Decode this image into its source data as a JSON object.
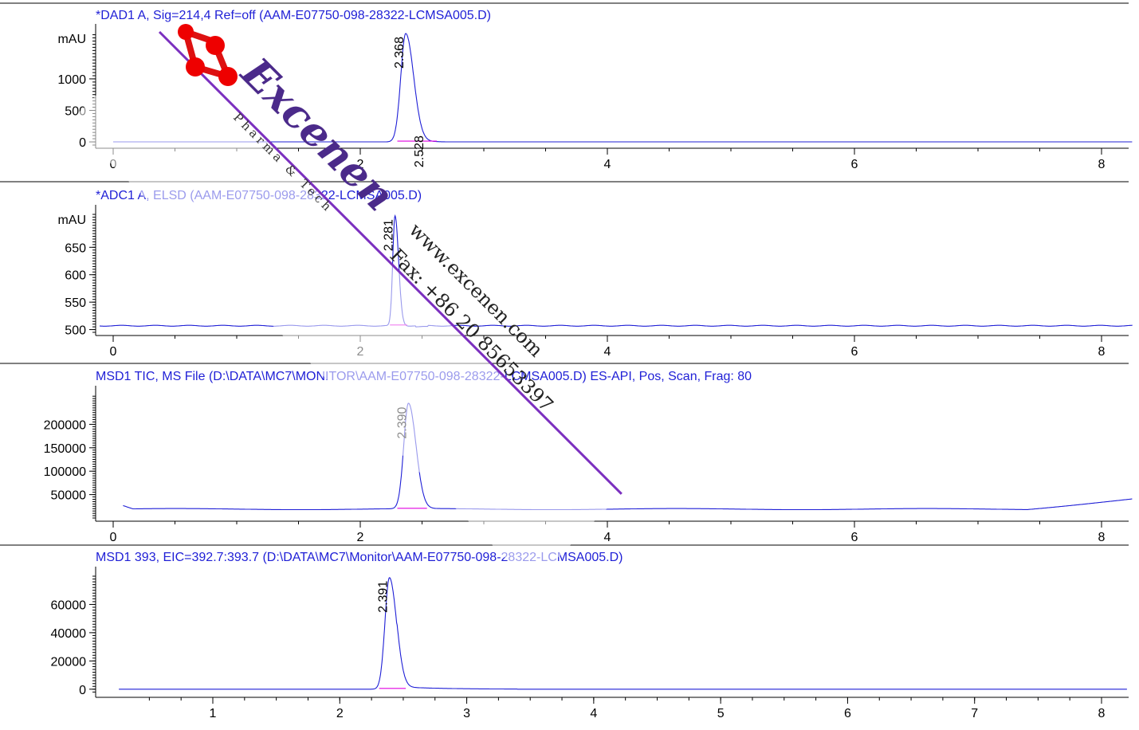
{
  "chart_data": [
    {
      "type": "line",
      "title": "*DAD1 A, Sig=214,4 Ref=off (AAM-E07750-098-28322-LCMSA005.D)",
      "ylabel": "mAU",
      "xlim": [
        -0.11,
        8.25
      ],
      "ylim": [
        -50,
        1720
      ],
      "xticks": [
        0,
        2,
        4,
        6,
        8
      ],
      "yticks": [
        0,
        500,
        1000
      ],
      "baseline": 0,
      "peaks": [
        {
          "label": "2.368",
          "rt": 2.368,
          "height": 1720,
          "width": 0.04
        },
        {
          "label": "2.528",
          "rt": 2.528,
          "height": 8,
          "width": 0.05
        }
      ],
      "integration": [
        2.3,
        2.62
      ],
      "x_start": 0.0
    },
    {
      "type": "line",
      "title": "*ADC1 A, ELSD (AAM-E07750-098-28322-LCMSA005.D)",
      "ylabel": "mAU",
      "xlim": [
        -0.11,
        8.25
      ],
      "ylim": [
        495,
        710
      ],
      "xticks": [
        0,
        2,
        4,
        6,
        8
      ],
      "yticks": [
        500,
        550,
        600,
        650
      ],
      "baseline": 507,
      "peaks": [
        {
          "label": "2.281",
          "rt": 2.281,
          "height": 200,
          "width": 0.018
        }
      ],
      "integration": [
        2.24,
        2.38
      ],
      "x_start": -0.11
    },
    {
      "type": "line",
      "title": "MSD1 TIC, MS File (D:\\DATA\\MC7\\MONITOR\\AAM-E07750-098-28322-LCMSA005.D)     ES-API, Pos, Scan, Frag: 80",
      "ylabel": "",
      "xlim": [
        -0.11,
        8.25
      ],
      "ylim": [
        0,
        262000
      ],
      "xticks": [
        0,
        2,
        4,
        6,
        8
      ],
      "yticks": [
        50000,
        100000,
        150000,
        200000
      ],
      "baseline": 19000,
      "peaks": [
        {
          "label": "2.390",
          "rt": 2.39,
          "height": 225000,
          "width": 0.038
        }
      ],
      "integration": [
        2.3,
        2.54
      ],
      "x_start": 0.08
    },
    {
      "type": "line",
      "title": "MSD1 393, EIC=392.7:393.7 (D:\\DATA\\MC7\\Monitor\\AAM-E07750-098-28322-LCMSA005.D)",
      "ylabel": "",
      "xlim": [
        0.26,
        8.2
      ],
      "ylim": [
        -3500,
        80000
      ],
      "xticks": [
        1,
        2,
        3,
        4,
        5,
        6,
        7,
        8
      ],
      "yticks": [
        0,
        20000,
        40000,
        60000
      ],
      "baseline": 0,
      "peaks": [
        {
          "label": "2.391",
          "rt": 2.391,
          "height": 79000,
          "width": 0.035
        }
      ],
      "integration": [
        2.31,
        2.52
      ],
      "x_start": 0.26
    }
  ],
  "colors": {
    "trace": "#1f1fd6",
    "title": "#1f1fd6",
    "integration": "#e000e0",
    "axis": "#000000",
    "watermark_band": "#7b2fbf"
  },
  "watermark": {
    "brand": "Excenen",
    "tagline": "Pharma & Tech",
    "url": "www.excenen.com",
    "fax": "Fax: +86 20 85653397"
  }
}
